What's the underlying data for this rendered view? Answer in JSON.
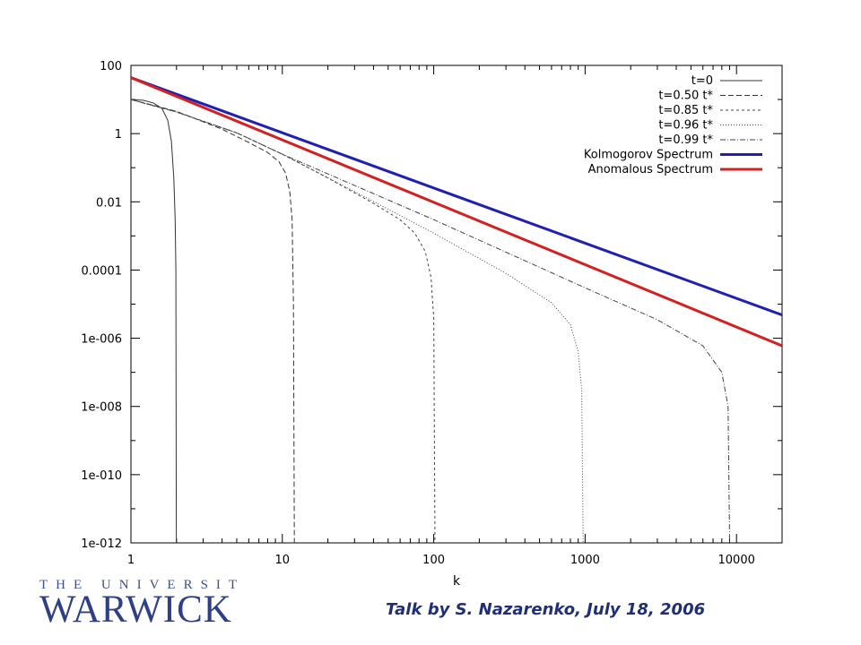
{
  "chart_data": {
    "type": "line",
    "title": "",
    "xlabel": "k",
    "ylabel": "",
    "xscale": "log",
    "yscale": "log",
    "xlim": [
      1,
      20000
    ],
    "ylim": [
      1e-12,
      100
    ],
    "grid": false,
    "legend_position": "top-right",
    "x_ticks": [
      {
        "value": 1,
        "label": "1"
      },
      {
        "value": 10,
        "label": "10"
      },
      {
        "value": 100,
        "label": "100"
      },
      {
        "value": 1000,
        "label": "1000"
      },
      {
        "value": 10000,
        "label": "10000"
      }
    ],
    "y_ticks": [
      {
        "value": 100,
        "label": "100"
      },
      {
        "value": 1,
        "label": "1"
      },
      {
        "value": 0.01,
        "label": "0.01"
      },
      {
        "value": 0.0001,
        "label": "0.0001"
      },
      {
        "value": 1e-06,
        "label": "1e-006"
      },
      {
        "value": 1e-08,
        "label": "1e-008"
      },
      {
        "value": 1e-10,
        "label": "1e-010"
      },
      {
        "value": 1e-12,
        "label": "1e-012"
      }
    ],
    "series": [
      {
        "name": "t=0",
        "style": "solid",
        "color": "#333333",
        "width": 1,
        "points": [
          [
            1,
            10
          ],
          [
            1.2,
            9.5
          ],
          [
            1.4,
            8
          ],
          [
            1.6,
            5.5
          ],
          [
            1.75,
            2.5
          ],
          [
            1.85,
            0.6
          ],
          [
            1.92,
            0.05
          ],
          [
            1.96,
            0.003
          ],
          [
            1.98,
            0.0001
          ],
          [
            1.995,
            1e-12
          ]
        ]
      },
      {
        "name": "t=0.50 t*",
        "style": "dash",
        "color": "#333333",
        "width": 1,
        "points": [
          [
            1,
            10
          ],
          [
            2,
            4.5
          ],
          [
            4,
            1.35
          ],
          [
            6,
            0.55
          ],
          [
            8,
            0.28
          ],
          [
            9.5,
            0.15
          ],
          [
            10.5,
            0.07
          ],
          [
            11.2,
            0.02
          ],
          [
            11.6,
            0.003
          ],
          [
            11.85,
            1e-05
          ],
          [
            12,
            1e-12
          ]
        ]
      },
      {
        "name": "t=0.85 t*",
        "style": "shortdash",
        "color": "#444444",
        "width": 1,
        "points": [
          [
            1,
            10
          ],
          [
            2,
            4.3
          ],
          [
            5,
            1.05
          ],
          [
            10,
            0.25
          ],
          [
            20,
            0.05
          ],
          [
            40,
            0.009
          ],
          [
            60,
            0.003
          ],
          [
            75,
            0.0012
          ],
          [
            88,
            0.00035
          ],
          [
            96,
            6e-05
          ],
          [
            100,
            4e-06
          ],
          [
            102,
            1e-12
          ]
        ]
      },
      {
        "name": "t=0.96 t*",
        "style": "dot",
        "color": "#444444",
        "width": 1,
        "points": [
          [
            1,
            10
          ],
          [
            2,
            4.3
          ],
          [
            5,
            1.05
          ],
          [
            10,
            0.25
          ],
          [
            30,
            0.02
          ],
          [
            100,
            0.0012
          ],
          [
            300,
            8e-05
          ],
          [
            600,
            1.1e-05
          ],
          [
            800,
            2.5e-06
          ],
          [
            900,
            4e-07
          ],
          [
            950,
            3e-08
          ],
          [
            970,
            1e-12
          ]
        ]
      },
      {
        "name": "t=0.99 t*",
        "style": "dashdot",
        "color": "#444444",
        "width": 1,
        "points": [
          [
            1,
            10
          ],
          [
            2,
            4.3
          ],
          [
            5,
            1.05
          ],
          [
            10,
            0.25
          ],
          [
            100,
            0.003
          ],
          [
            1000,
            3e-05
          ],
          [
            3000,
            3.5e-06
          ],
          [
            6000,
            6e-07
          ],
          [
            8000,
            1e-07
          ],
          [
            8800,
            1e-08
          ],
          [
            9000,
            1e-12
          ]
        ]
      },
      {
        "name": "Kolmogorov Spectrum",
        "style": "solid",
        "color": "#1f1fb4",
        "width": 3,
        "points": [
          [
            1,
            44
          ],
          [
            20000,
            4.8e-06
          ]
        ]
      },
      {
        "name": "Anomalous Spectrum",
        "style": "solid",
        "color": "#d42020",
        "width": 3,
        "points": [
          [
            1,
            44
          ],
          [
            20000,
            6e-07
          ]
        ]
      }
    ]
  },
  "logo": {
    "top_text": "THE UNIVERSITY OF",
    "main_text": "WARWICK"
  },
  "footer": {
    "talk": "Talk by S. Nazarenko, July 18, 2006"
  }
}
